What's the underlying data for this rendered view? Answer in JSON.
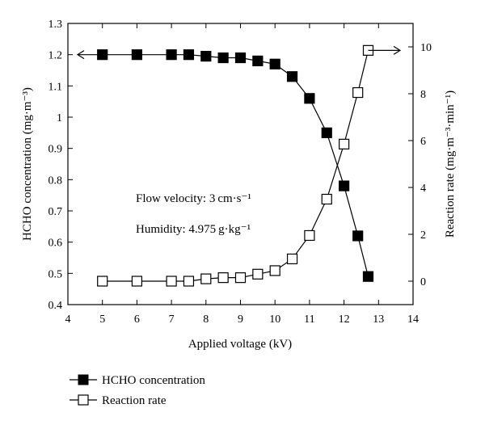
{
  "chart_data": {
    "type": "line",
    "title": "",
    "xlabel": "Applied voltage (kV)",
    "ylabel_left": "HCHO concentration (mg·m⁻³)",
    "ylabel_right": "Reaction rate (mg·m⁻³·min⁻¹)",
    "xlim": [
      4,
      14
    ],
    "ylim_left": [
      0.4,
      1.3
    ],
    "ylim_right": [
      -1,
      11
    ],
    "x_ticks": [
      "4",
      "5",
      "6",
      "7",
      "8",
      "9",
      "10",
      "11",
      "12",
      "13",
      "14"
    ],
    "y_left_ticks": [
      "0.4",
      "0.5",
      "0.6",
      "0.7",
      "0.8",
      "0.9",
      "1",
      "1.1",
      "1.2",
      "1.3"
    ],
    "y_right_ticks": [
      "0",
      "2",
      "4",
      "6",
      "8",
      "10"
    ],
    "grid": false,
    "legend_position": "bottom-left",
    "series": [
      {
        "name": "HCHO concentration",
        "axis": "left",
        "marker": "filled-square",
        "x": [
          5,
          6,
          7,
          7.5,
          8,
          8.5,
          9,
          9.5,
          10,
          10.5,
          11,
          11.5,
          12,
          12.4,
          12.7
        ],
        "values": [
          1.2,
          1.2,
          1.2,
          1.2,
          1.195,
          1.19,
          1.19,
          1.18,
          1.17,
          1.13,
          1.06,
          0.95,
          0.78,
          0.62,
          0.49
        ]
      },
      {
        "name": "Reaction rate",
        "axis": "right",
        "marker": "open-square",
        "x": [
          5,
          6,
          7,
          7.5,
          8,
          8.5,
          9,
          9.5,
          10,
          10.5,
          11,
          11.5,
          12,
          12.4,
          12.7
        ],
        "values": [
          0,
          0,
          0,
          0,
          0.1,
          0.15,
          0.15,
          0.3,
          0.45,
          0.95,
          1.95,
          3.5,
          5.85,
          8.05,
          9.85
        ]
      }
    ],
    "annotations": [
      "Flow velocity: 3 cm·s⁻¹",
      "Humidity: 4.975 g·kg⁻¹"
    ]
  }
}
